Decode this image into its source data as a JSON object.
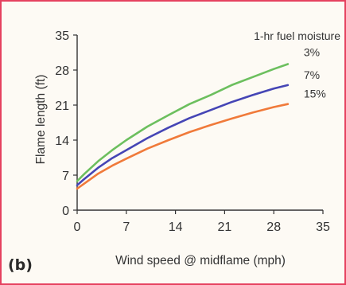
{
  "panel_label": "(b)",
  "chart_data": {
    "type": "line",
    "xlabel": "Wind speed @ midflame (mph)",
    "ylabel": "Flame length (ft)",
    "xlim": [
      0,
      35
    ],
    "ylim": [
      0,
      35
    ],
    "xticks": [
      0,
      7,
      14,
      21,
      28,
      35
    ],
    "yticks": [
      0,
      7,
      14,
      21,
      28,
      35
    ],
    "grid": false,
    "legend_title": "1-hr fuel moisture",
    "legend_position": "top-right",
    "x": [
      0,
      1,
      3,
      5,
      7,
      10,
      13,
      16,
      19,
      22,
      25,
      28,
      30
    ],
    "series": [
      {
        "name": "3%",
        "color": "#6cbf5e",
        "values": [
          5.8,
          7.2,
          9.8,
          12.0,
          14.0,
          16.7,
          19.0,
          21.2,
          23.0,
          25.0,
          26.6,
          28.2,
          29.2
        ]
      },
      {
        "name": "7%",
        "color": "#4545b5",
        "values": [
          5.0,
          6.2,
          8.5,
          10.4,
          12.0,
          14.4,
          16.5,
          18.4,
          20.0,
          21.6,
          23.0,
          24.3,
          25.0
        ]
      },
      {
        "name": "15%",
        "color": "#f07a3a",
        "values": [
          4.3,
          5.3,
          7.3,
          8.9,
          10.3,
          12.3,
          14.0,
          15.6,
          17.0,
          18.3,
          19.5,
          20.6,
          21.2
        ]
      }
    ]
  }
}
